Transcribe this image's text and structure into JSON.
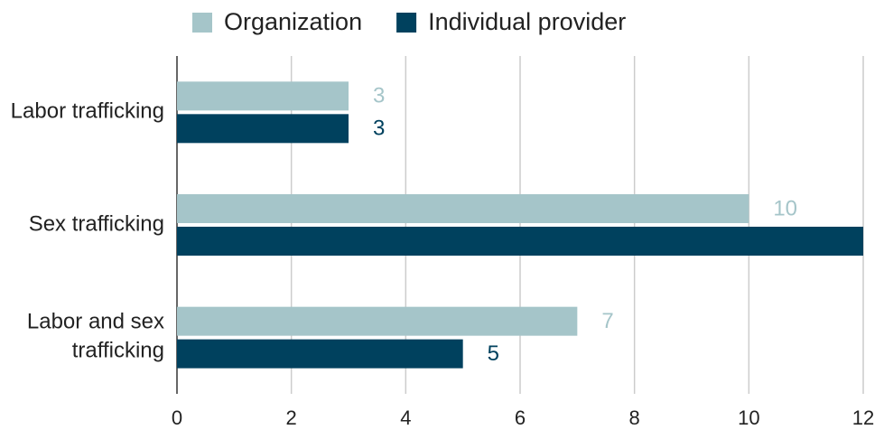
{
  "chart_data": {
    "type": "hbar",
    "categories": [
      "Labor trafficking",
      "Sex trafficking",
      "Labor and sex trafficking"
    ],
    "series": [
      {
        "name": "Organization",
        "color": "#a5c5c9",
        "values": [
          3,
          10,
          7
        ]
      },
      {
        "name": "Individual provider",
        "color": "#00415e",
        "values": [
          3,
          12,
          5
        ]
      }
    ],
    "xlim": [
      0,
      12
    ],
    "xticks": [
      0,
      2,
      4,
      6,
      8,
      10,
      12
    ],
    "grid": true,
    "legend": "top"
  }
}
